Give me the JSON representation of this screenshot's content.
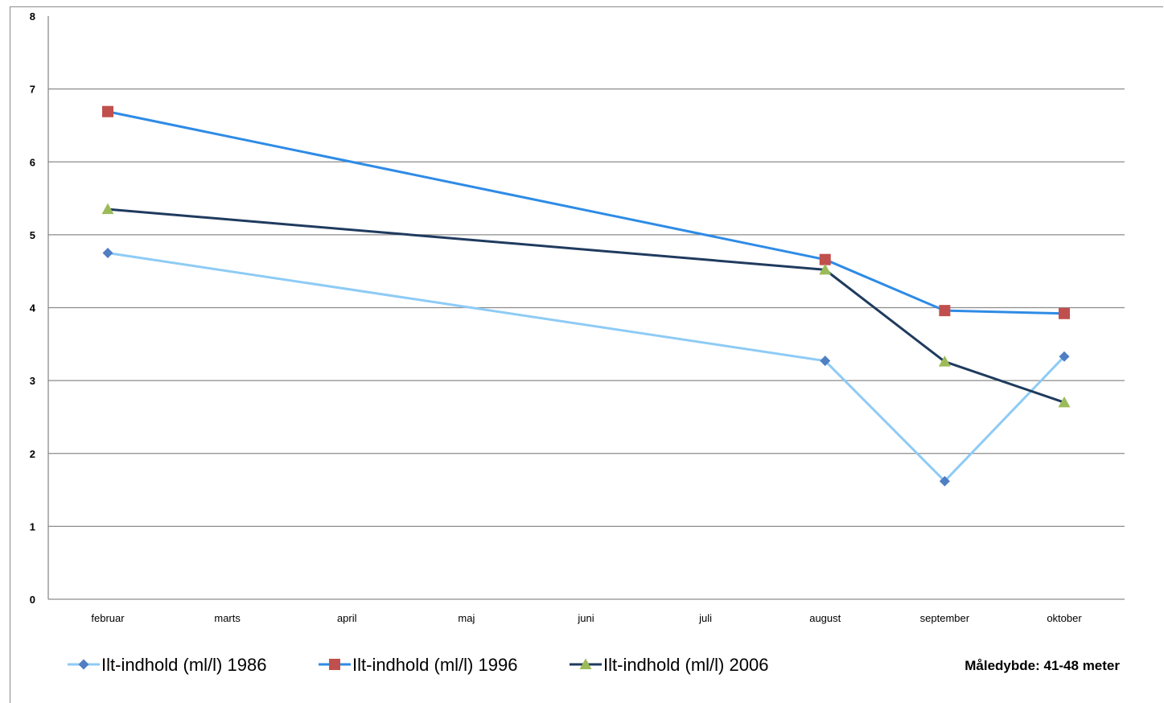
{
  "chart_data": {
    "type": "line",
    "categories": [
      "februar",
      "marts",
      "april",
      "maj",
      "juni",
      "juli",
      "august",
      "september",
      "oktober"
    ],
    "ylim": [
      0,
      8
    ],
    "yticks": [
      0,
      1,
      2,
      3,
      4,
      5,
      6,
      7,
      8
    ],
    "grid": true,
    "legend_position": "bottom",
    "series": [
      {
        "name": "Ilt-indhold (ml/l) 1986",
        "line_color": "#8ecbf5",
        "marker_color": "#4f7fc2",
        "marker": "diamond",
        "points": [
          {
            "x": "februar",
            "y": 4.75
          },
          {
            "x": "august",
            "y": 3.27
          },
          {
            "x": "september",
            "y": 1.62
          },
          {
            "x": "oktober",
            "y": 3.33
          }
        ]
      },
      {
        "name": "Ilt-indhold (ml/l) 1996",
        "line_color": "#2e8be6",
        "marker_color": "#c0504d",
        "marker": "square",
        "points": [
          {
            "x": "februar",
            "y": 6.69
          },
          {
            "x": "august",
            "y": 4.66
          },
          {
            "x": "september",
            "y": 3.96
          },
          {
            "x": "oktober",
            "y": 3.92
          }
        ]
      },
      {
        "name": "Ilt-indhold (ml/l) 2006",
        "line_color": "#1f3b5e",
        "marker_color": "#9bbb59",
        "marker": "triangle",
        "points": [
          {
            "x": "februar",
            "y": 5.35
          },
          {
            "x": "august",
            "y": 4.52
          },
          {
            "x": "september",
            "y": 3.26
          },
          {
            "x": "oktober",
            "y": 2.7
          }
        ]
      }
    ],
    "annotation": "Måledybde: 41-48 meter"
  }
}
